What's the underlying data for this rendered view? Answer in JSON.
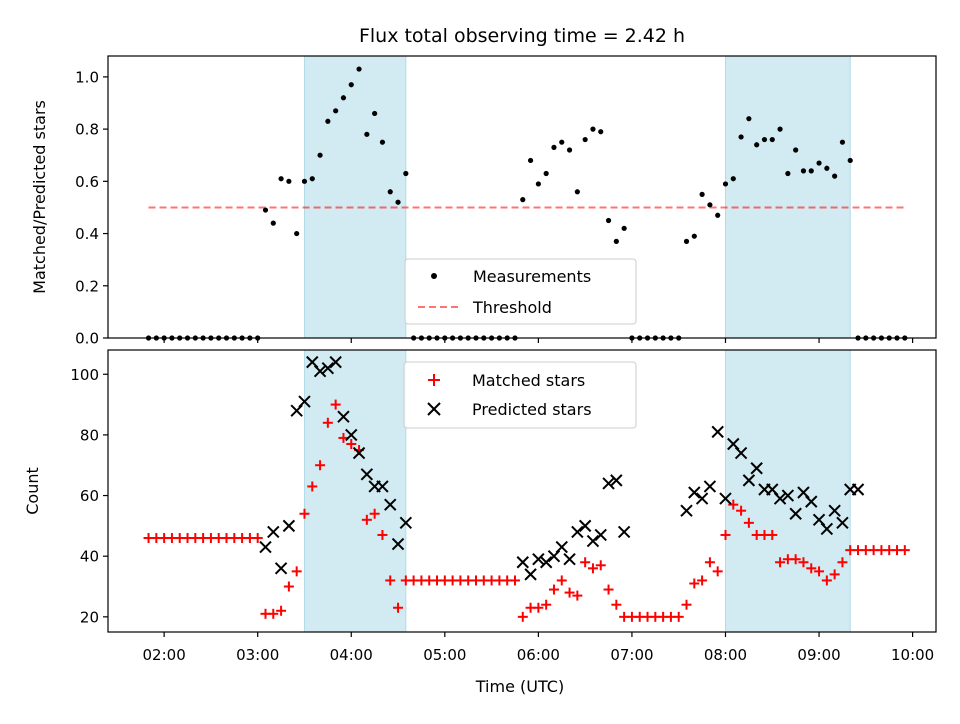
{
  "title": "Flux total observing time = 2.42 h",
  "colors": {
    "band": "#add8e6",
    "threshold": "#ff0000",
    "matched": "#ff0000",
    "predicted": "#000000",
    "measurement": "#000000"
  },
  "chart_data": [
    {
      "type": "scatter",
      "ylabel": "Matched/Predicted stars",
      "xlabel": "",
      "ylim": [
        0,
        1.08
      ],
      "yticks": [
        "0.0",
        "0.2",
        "0.4",
        "0.6",
        "0.8",
        "1.0"
      ],
      "legend": {
        "placement": "lower-center",
        "entries": [
          "Measurements",
          "Threshold"
        ]
      },
      "shaded_intervals": [
        [
          "03:30",
          "04:35"
        ],
        [
          "08:00",
          "09:20"
        ]
      ],
      "threshold": {
        "name": "Threshold",
        "value": 0.5,
        "x_range": [
          "01:50",
          "09:55"
        ]
      },
      "series": [
        {
          "name": "Measurements",
          "x": [
            "01:50",
            "01:55",
            "02:00",
            "02:05",
            "02:10",
            "02:15",
            "02:20",
            "02:25",
            "02:30",
            "02:35",
            "02:40",
            "02:45",
            "02:50",
            "02:55",
            "03:00",
            "03:05",
            "03:10",
            "03:15",
            "03:20",
            "03:25",
            "03:30",
            "03:35",
            "03:40",
            "03:45",
            "03:50",
            "03:55",
            "04:00",
            "04:05",
            "04:10",
            "04:15",
            "04:20",
            "04:25",
            "04:30",
            "04:35",
            "04:40",
            "04:45",
            "04:50",
            "04:55",
            "05:00",
            "05:05",
            "05:10",
            "05:15",
            "05:20",
            "05:25",
            "05:30",
            "05:35",
            "05:40",
            "05:45",
            "05:50",
            "05:55",
            "06:00",
            "06:05",
            "06:10",
            "06:15",
            "06:20",
            "06:25",
            "06:30",
            "06:35",
            "06:40",
            "06:45",
            "06:50",
            "06:55",
            "07:00",
            "07:05",
            "07:10",
            "07:15",
            "07:20",
            "07:25",
            "07:30",
            "07:35",
            "07:40",
            "07:45",
            "07:50",
            "07:55",
            "08:00",
            "08:05",
            "08:10",
            "08:15",
            "08:20",
            "08:25",
            "08:30",
            "08:35",
            "08:40",
            "08:45",
            "08:50",
            "08:55",
            "09:00",
            "09:05",
            "09:10",
            "09:15",
            "09:20",
            "09:25",
            "09:30",
            "09:35",
            "09:40",
            "09:45",
            "09:50",
            "09:55"
          ],
          "y": [
            0,
            0,
            0,
            0,
            0,
            0,
            0,
            0,
            0,
            0,
            0,
            0,
            0,
            0,
            0,
            0.49,
            0.44,
            0.61,
            0.6,
            0.4,
            0.6,
            0.61,
            0.7,
            0.83,
            0.87,
            0.92,
            0.97,
            1.03,
            0.78,
            0.86,
            0.75,
            0.56,
            0.52,
            0.63,
            0,
            0,
            0,
            0,
            0,
            0,
            0,
            0,
            0,
            0,
            0,
            0,
            0,
            0,
            0.53,
            0.68,
            0.59,
            0.63,
            0.73,
            0.75,
            0.72,
            0.56,
            0.76,
            0.8,
            0.79,
            0.45,
            0.37,
            0.42,
            0,
            0,
            0,
            0,
            0,
            0,
            0,
            0.37,
            0.39,
            0.55,
            0.51,
            0.47,
            0.59,
            0.61,
            0.77,
            0.84,
            0.74,
            0.76,
            0.76,
            0.8,
            0.63,
            0.72,
            0.64,
            0.64,
            0.67,
            0.65,
            0.62,
            0.75,
            0.68,
            0,
            0,
            0,
            0,
            0,
            0,
            0
          ]
        }
      ]
    },
    {
      "type": "scatter",
      "ylabel": "Count",
      "xlabel": "Time (UTC)",
      "ylim": [
        15,
        108
      ],
      "yticks": [
        "20",
        "40",
        "60",
        "80",
        "100"
      ],
      "xticks": [
        "02:00",
        "03:00",
        "04:00",
        "05:00",
        "06:00",
        "07:00",
        "08:00",
        "09:00",
        "10:00"
      ],
      "legend": {
        "placement": "upper-center",
        "entries": [
          "Matched stars",
          "Predicted stars"
        ]
      },
      "shaded_intervals": [
        [
          "03:30",
          "04:35"
        ],
        [
          "08:00",
          "09:20"
        ]
      ],
      "series": [
        {
          "name": "Matched stars",
          "x": [
            "01:50",
            "01:55",
            "02:00",
            "02:05",
            "02:10",
            "02:15",
            "02:20",
            "02:25",
            "02:30",
            "02:35",
            "02:40",
            "02:45",
            "02:50",
            "02:55",
            "03:00",
            "03:05",
            "03:10",
            "03:15",
            "03:20",
            "03:25",
            "03:30",
            "03:35",
            "03:40",
            "03:45",
            "03:50",
            "03:55",
            "04:00",
            "04:05",
            "04:10",
            "04:15",
            "04:20",
            "04:25",
            "04:30",
            "04:35",
            "04:40",
            "04:45",
            "04:50",
            "04:55",
            "05:00",
            "05:05",
            "05:10",
            "05:15",
            "05:20",
            "05:25",
            "05:30",
            "05:35",
            "05:40",
            "05:45",
            "05:50",
            "05:55",
            "06:00",
            "06:05",
            "06:10",
            "06:15",
            "06:20",
            "06:25",
            "06:30",
            "06:35",
            "06:40",
            "06:45",
            "06:50",
            "06:55",
            "07:00",
            "07:05",
            "07:10",
            "07:15",
            "07:20",
            "07:25",
            "07:30",
            "07:35",
            "07:40",
            "07:45",
            "07:50",
            "07:55",
            "08:00",
            "08:05",
            "08:10",
            "08:15",
            "08:20",
            "08:25",
            "08:30",
            "08:35",
            "08:40",
            "08:45",
            "08:50",
            "08:55",
            "09:00",
            "09:05",
            "09:10",
            "09:15",
            "09:20",
            "09:25",
            "09:30",
            "09:35",
            "09:40",
            "09:45",
            "09:50",
            "09:55"
          ],
          "y": [
            46,
            46,
            46,
            46,
            46,
            46,
            46,
            46,
            46,
            46,
            46,
            46,
            46,
            46,
            46,
            21,
            21,
            22,
            30,
            35,
            54,
            63,
            70,
            84,
            90,
            79,
            77,
            75,
            52,
            54,
            47,
            32,
            23,
            32,
            32,
            32,
            32,
            32,
            32,
            32,
            32,
            32,
            32,
            32,
            32,
            32,
            32,
            32,
            20,
            23,
            23,
            24,
            29,
            32,
            28,
            27,
            38,
            36,
            37,
            29,
            24,
            20,
            20,
            20,
            20,
            20,
            20,
            20,
            20,
            24,
            31,
            32,
            38,
            35,
            47,
            57,
            55,
            51,
            47,
            47,
            47,
            38,
            39,
            39,
            38,
            36,
            35,
            32,
            34,
            38,
            42,
            42,
            42,
            42,
            42,
            42,
            42,
            42
          ]
        },
        {
          "name": "Predicted stars",
          "x": [
            "03:05",
            "03:10",
            "03:15",
            "03:20",
            "03:25",
            "03:30",
            "03:35",
            "03:40",
            "03:45",
            "03:50",
            "03:55",
            "04:00",
            "04:05",
            "04:10",
            "04:15",
            "04:20",
            "04:25",
            "04:30",
            "04:35",
            "05:50",
            "05:55",
            "06:00",
            "06:05",
            "06:10",
            "06:15",
            "06:20",
            "06:25",
            "06:30",
            "06:35",
            "06:40",
            "06:45",
            "06:50",
            "06:55",
            "07:35",
            "07:40",
            "07:45",
            "07:50",
            "07:55",
            "08:00",
            "08:05",
            "08:10",
            "08:15",
            "08:20",
            "08:25",
            "08:30",
            "08:35",
            "08:40",
            "08:45",
            "08:50",
            "08:55",
            "09:00",
            "09:05",
            "09:10",
            "09:15",
            "09:20",
            "09:25"
          ],
          "y": [
            43,
            48,
            36,
            50,
            88,
            91,
            104,
            101,
            102,
            104,
            86,
            80,
            74,
            67,
            63,
            63,
            57,
            44,
            51,
            38,
            34,
            39,
            38,
            40,
            43,
            39,
            48,
            50,
            45,
            47,
            64,
            65,
            48,
            55,
            61,
            59,
            63,
            81,
            59,
            77,
            74,
            65,
            69,
            62,
            62,
            59,
            60,
            54,
            61,
            58,
            52,
            49,
            55,
            51,
            62,
            62
          ]
        }
      ]
    }
  ]
}
